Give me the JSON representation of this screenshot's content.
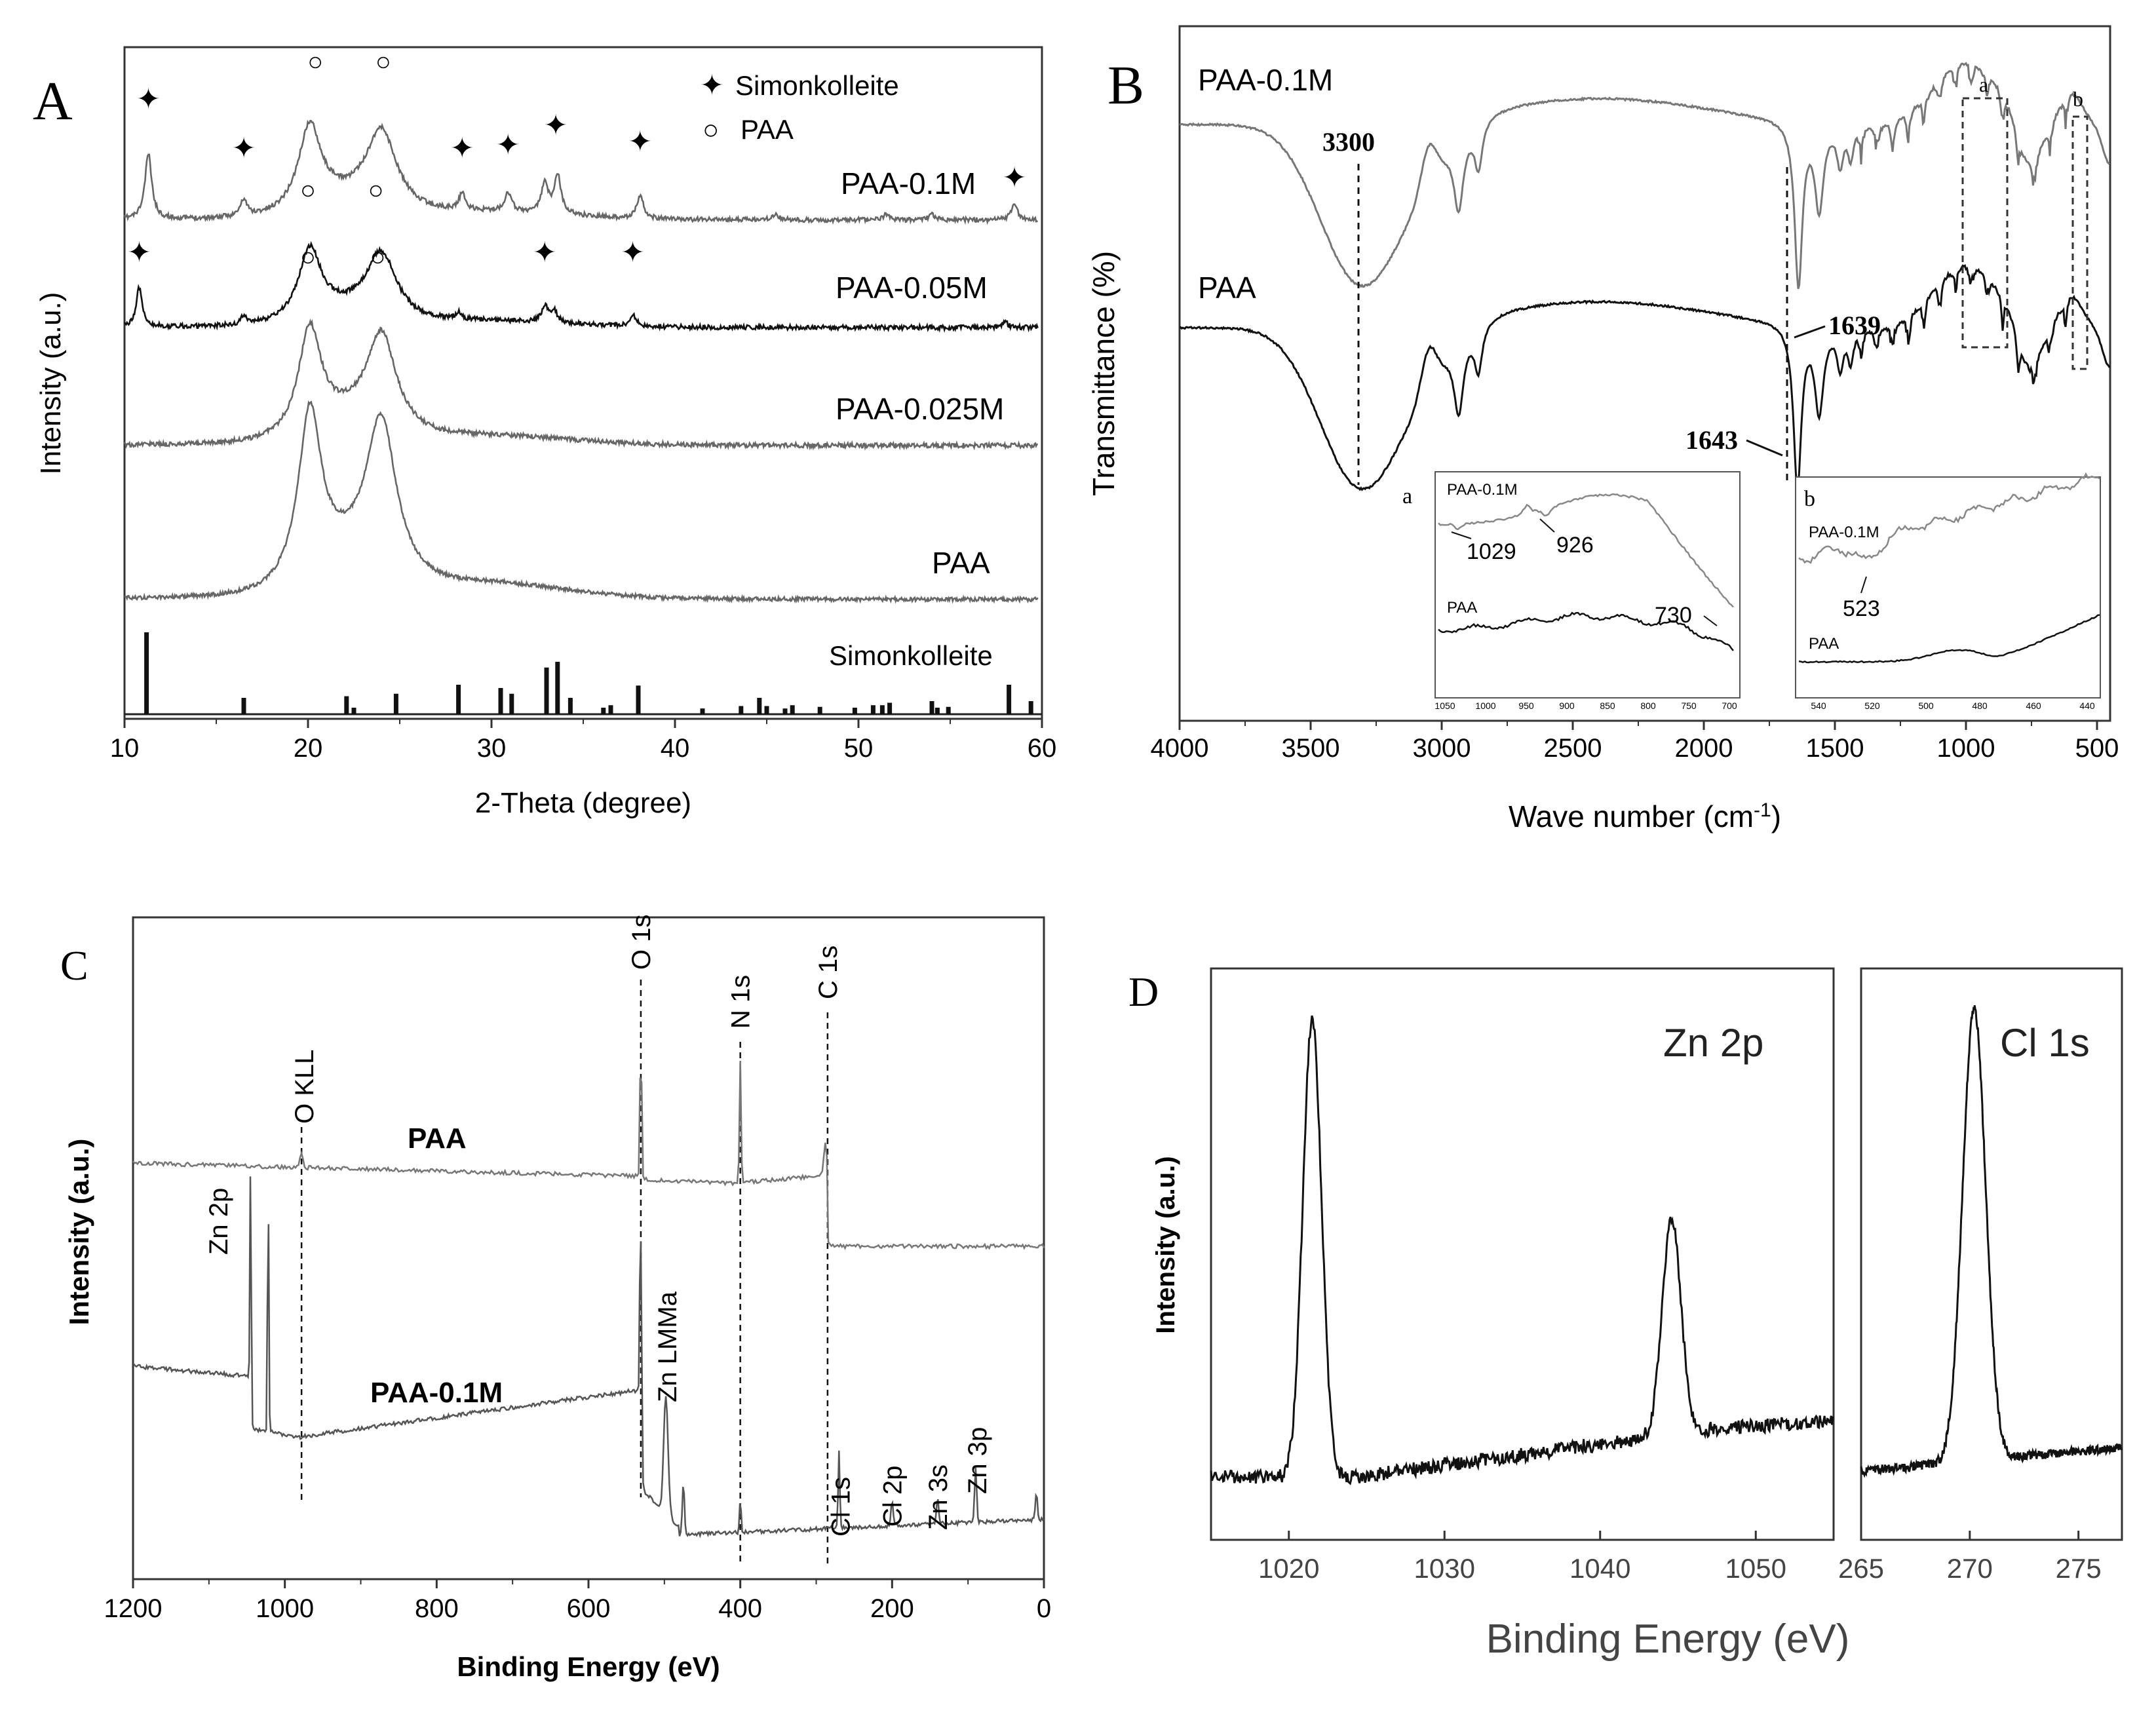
{
  "chart_data": [
    {
      "panel": "A",
      "type": "line",
      "xlabel": "2-Theta (degree)",
      "ylabel": "Intensity (a.u.)",
      "xlim": [
        10,
        60
      ],
      "xticks": [
        10,
        20,
        30,
        40,
        50,
        60
      ],
      "legend": [
        {
          "symbol": "✦",
          "label": "Simonkolleite"
        },
        {
          "symbol": "○",
          "label": "PAA"
        }
      ],
      "series": [
        {
          "name": "PAA-0.1M",
          "base": 0.87,
          "simonkolleite_peaks": [
            11.3,
            16.5,
            28.4,
            30.9,
            33.5,
            38.1,
            58.5
          ],
          "paa_peaks": [
            20.4,
            24.1
          ]
        },
        {
          "name": "PAA-0.05M",
          "base": 0.63,
          "simonkolleite_peaks": [
            10.8,
            32.9,
            37.7
          ],
          "paa_peaks": [
            20.0,
            23.7
          ]
        },
        {
          "name": "PAA-0.025M",
          "base": 0.43,
          "paa_peaks": [
            20.0,
            23.8
          ]
        },
        {
          "name": "PAA",
          "base": 0.18
        }
      ],
      "reference": {
        "name": "Simonkolleite",
        "sticks": [
          [
            11.2,
            1.0
          ],
          [
            16.5,
            0.2
          ],
          [
            22.1,
            0.22
          ],
          [
            22.5,
            0.08
          ],
          [
            24.8,
            0.25
          ],
          [
            28.2,
            0.36
          ],
          [
            30.5,
            0.32
          ],
          [
            31.1,
            0.25
          ],
          [
            33.0,
            0.57
          ],
          [
            33.6,
            0.64
          ],
          [
            34.3,
            0.2
          ],
          [
            36.1,
            0.08
          ],
          [
            36.5,
            0.11
          ],
          [
            38.0,
            0.35
          ],
          [
            41.5,
            0.07
          ],
          [
            43.6,
            0.1
          ],
          [
            44.6,
            0.2
          ],
          [
            45.0,
            0.1
          ],
          [
            46.0,
            0.07
          ],
          [
            46.4,
            0.11
          ],
          [
            47.9,
            0.09
          ],
          [
            49.8,
            0.08
          ],
          [
            50.8,
            0.11
          ],
          [
            51.3,
            0.11
          ],
          [
            51.7,
            0.14
          ],
          [
            54.0,
            0.16
          ],
          [
            54.3,
            0.08
          ],
          [
            54.9,
            0.09
          ],
          [
            58.2,
            0.36
          ],
          [
            59.4,
            0.16
          ]
        ]
      }
    },
    {
      "panel": "B",
      "type": "line",
      "xlabel": "Wave number (cm",
      "xlabel_sup": "-1",
      "xlabel_close": ")",
      "ylabel": "Transmittance (%)",
      "xlim": [
        4000,
        450
      ],
      "xticks": [
        4000,
        3500,
        3000,
        2500,
        2000,
        1500,
        1000,
        500
      ],
      "series": [
        {
          "name": "PAA-0.1M"
        },
        {
          "name": "PAA"
        }
      ],
      "annotations": [
        "3300",
        "1639",
        "1643"
      ],
      "boxes": [
        "a",
        "b"
      ],
      "inset_a": {
        "label": "a",
        "series": [
          "PAA-0.1M",
          "PAA"
        ],
        "peaks": [
          "1029",
          "926",
          "730"
        ],
        "ticks": [
          "1050",
          "1000",
          "950",
          "900",
          "850",
          "800",
          "750",
          "700"
        ]
      },
      "inset_b": {
        "label": "b",
        "series": [
          "PAA-0.1M",
          "PAA"
        ],
        "peaks": [
          "523"
        ],
        "ticks": [
          "540",
          "520",
          "500",
          "480",
          "460",
          "440"
        ]
      }
    },
    {
      "panel": "C",
      "type": "line",
      "xlabel": "Binding Energy (eV)",
      "ylabel": "Intensity (a.u.)",
      "xlim": [
        1200,
        0
      ],
      "xticks": [
        1200,
        1000,
        800,
        600,
        400,
        200,
        0
      ],
      "series": [
        {
          "name": "PAA"
        },
        {
          "name": "PAA-0.1M"
        }
      ],
      "peak_labels": [
        "O 1s",
        "N 1s",
        "C 1s",
        "O KLL",
        "Zn 2p",
        "Zn LMMa",
        "Cl 1s",
        "Cl 2p",
        "Zn 3s",
        "Zn 3p"
      ],
      "peak_positions": {
        "O 1s": 531,
        "N 1s": 400,
        "C 1s": 285,
        "O KLL": 978,
        "Zn 2p": 1022,
        "Zn LMMa": 498,
        "Cl 1s": 270,
        "Cl 2p": 200,
        "Zn 3s": 140,
        "Zn 3p": 90
      }
    },
    {
      "panel": "D",
      "type": "line",
      "xlabel": "Binding Energy (eV)",
      "ylabel": "Intensity (a.u.)",
      "subplots": [
        {
          "name": "Zn 2p",
          "xlim": [
            1015,
            1055
          ],
          "xticks": [
            1020,
            1030,
            1040,
            1050
          ],
          "peaks": [
            1021.5,
            1044.6
          ]
        },
        {
          "name": "Cl 1s",
          "xlim": [
            265,
            277
          ],
          "xticks": [
            265,
            270,
            275
          ],
          "peaks": [
            270.2
          ]
        }
      ]
    }
  ],
  "panel_labels": {
    "a": "A",
    "b": "B",
    "c": "C",
    "d": "D"
  }
}
